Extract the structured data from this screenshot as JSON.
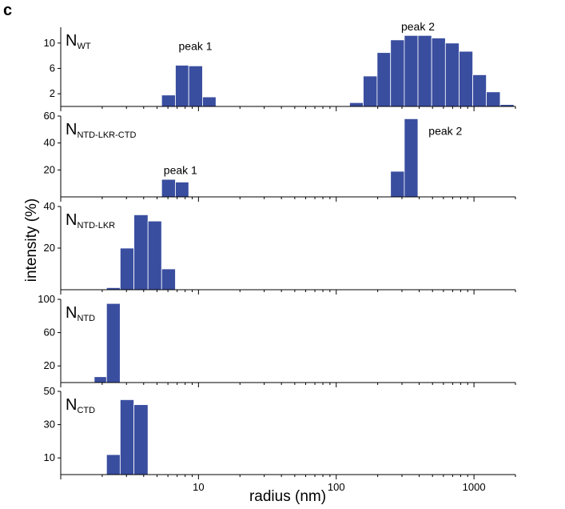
{
  "figure": {
    "panel_label": "c"
  },
  "chart_data": {
    "type": "bar",
    "shared_x": {
      "label": "radius (nm)",
      "scale": "log",
      "lim": [
        1,
        2000
      ],
      "tick_labels": [
        {
          "value": 10,
          "label": "10"
        },
        {
          "value": 100,
          "label": "100"
        },
        {
          "value": 1000,
          "label": "1000"
        }
      ]
    },
    "shared_y": {
      "label": "intensity (%)"
    },
    "bar_color": "#3a4ea0",
    "panels": [
      {
        "name": "N",
        "subscript": "WT",
        "ylim": [
          0,
          12.5
        ],
        "yticks": [
          2,
          6,
          10
        ],
        "bars": [
          [
            5.4,
            6.8,
            1.8
          ],
          [
            6.8,
            8.5,
            6.5
          ],
          [
            8.5,
            10.7,
            6.4
          ],
          [
            10.7,
            13.4,
            1.5
          ],
          [
            125,
            157,
            0.6
          ],
          [
            157,
            198,
            4.8
          ],
          [
            198,
            248,
            8.5
          ],
          [
            248,
            312,
            10.5
          ],
          [
            312,
            392,
            11.2
          ],
          [
            392,
            493,
            11.2
          ],
          [
            493,
            620,
            10.8
          ],
          [
            620,
            780,
            10.0
          ],
          [
            780,
            980,
            8.7
          ],
          [
            980,
            1230,
            5.0
          ],
          [
            1230,
            1550,
            2.3
          ],
          [
            1550,
            1950,
            0.3
          ]
        ],
        "annotations": [
          {
            "text": "peak 1",
            "x": 9.5,
            "y": 8.9
          },
          {
            "text": "peak 2",
            "x": 392,
            "y": 12.0
          }
        ]
      },
      {
        "name": "N",
        "subscript": "NTD-LKR-CTD",
        "ylim": [
          0,
          60
        ],
        "yticks": [
          20,
          40,
          60
        ],
        "bars": [
          [
            5.4,
            6.8,
            13
          ],
          [
            6.8,
            8.5,
            11
          ],
          [
            248,
            312,
            19
          ],
          [
            312,
            392,
            58
          ]
        ],
        "annotations": [
          {
            "text": "peak 1",
            "x": 7.4,
            "y": 17
          },
          {
            "text": "peak 2",
            "x": 620,
            "y": 46
          }
        ]
      },
      {
        "name": "N",
        "subscript": "NTD-LKR",
        "ylim": [
          0,
          40
        ],
        "yticks": [
          20,
          40
        ],
        "bars": [
          [
            2.15,
            2.7,
            1
          ],
          [
            2.7,
            3.4,
            20
          ],
          [
            3.4,
            4.3,
            36
          ],
          [
            4.3,
            5.4,
            33
          ],
          [
            5.4,
            6.8,
            10
          ]
        ],
        "annotations": []
      },
      {
        "name": "N",
        "subscript": "NTD",
        "ylim": [
          0,
          100
        ],
        "yticks": [
          20,
          60,
          100
        ],
        "bars": [
          [
            1.75,
            2.15,
            7
          ],
          [
            2.15,
            2.7,
            95
          ]
        ],
        "annotations": []
      },
      {
        "name": "N",
        "subscript": "CTD",
        "ylim": [
          0,
          50
        ],
        "yticks": [
          10,
          30,
          50
        ],
        "bars": [
          [
            2.15,
            2.7,
            12
          ],
          [
            2.7,
            3.4,
            45
          ],
          [
            3.4,
            4.3,
            42
          ]
        ],
        "annotations": []
      }
    ]
  }
}
